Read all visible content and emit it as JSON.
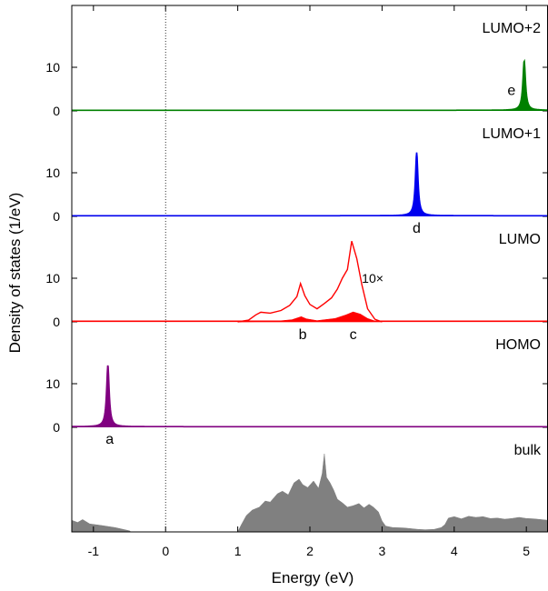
{
  "chart_data": {
    "type": "area",
    "xlabel": "Energy (eV)",
    "ylabel": "Density of states (1/eV)",
    "xlim": [
      -1.3,
      5.3
    ],
    "x_ticks": [
      -1,
      0,
      1,
      2,
      3,
      4,
      5
    ],
    "fermi_line_x": 0,
    "panels": [
      {
        "name": "LUMO+2",
        "color": "#008000",
        "ymax": 19.5,
        "y_ticks": [
          0,
          10
        ],
        "baseline": 0.15,
        "peaks": [
          {
            "x": 4.97,
            "height": 11.4,
            "width": 0.022,
            "label": "e"
          }
        ]
      },
      {
        "name": "LUMO+1",
        "color": "#0000ee",
        "ymax": 19.5,
        "y_ticks": [
          0,
          10
        ],
        "baseline": 0.15,
        "peaks": [
          {
            "x": 3.48,
            "height": 14.5,
            "width": 0.022,
            "label": "d"
          }
        ]
      },
      {
        "name": "LUMO",
        "color": "#ff0000",
        "ymax": 19.5,
        "y_ticks": [
          0,
          10
        ],
        "baseline": 0.15,
        "filled": [
          [
            1.0,
            0.0
          ],
          [
            1.5,
            0.1
          ],
          [
            1.75,
            0.5
          ],
          [
            1.88,
            1.2
          ],
          [
            1.95,
            0.7
          ],
          [
            2.1,
            0.3
          ],
          [
            2.35,
            0.8
          ],
          [
            2.5,
            1.6
          ],
          [
            2.6,
            2.3
          ],
          [
            2.7,
            1.8
          ],
          [
            2.8,
            0.8
          ],
          [
            2.9,
            0.2
          ],
          [
            3.0,
            0.0
          ]
        ],
        "magnified": {
          "factor_label": "10×",
          "points": [
            [
              1.0,
              0.0
            ],
            [
              1.15,
              0.4
            ],
            [
              1.25,
              1.6
            ],
            [
              1.32,
              2.2
            ],
            [
              1.45,
              2.0
            ],
            [
              1.6,
              2.6
            ],
            [
              1.72,
              3.8
            ],
            [
              1.82,
              5.8
            ],
            [
              1.87,
              8.8
            ],
            [
              1.93,
              6.0
            ],
            [
              2.0,
              4.0
            ],
            [
              2.1,
              3.0
            ],
            [
              2.2,
              4.2
            ],
            [
              2.3,
              5.5
            ],
            [
              2.38,
              7.5
            ],
            [
              2.45,
              10.0
            ],
            [
              2.52,
              12.0
            ],
            [
              2.58,
              18.5
            ],
            [
              2.65,
              14.5
            ],
            [
              2.72,
              8.5
            ],
            [
              2.8,
              3.0
            ],
            [
              2.9,
              0.6
            ],
            [
              3.0,
              0.0
            ]
          ]
        },
        "peak_labels": [
          {
            "x": 1.9,
            "label": "b"
          },
          {
            "x": 2.6,
            "label": "c"
          }
        ]
      },
      {
        "name": "HOMO",
        "color": "#800080",
        "ymax": 19.5,
        "y_ticks": [
          0,
          10
        ],
        "baseline": 0.15,
        "peaks": [
          {
            "x": -0.8,
            "height": 14.2,
            "width": 0.022,
            "label": "a"
          }
        ]
      },
      {
        "name": "bulk",
        "color": "#808080",
        "ymax": 20,
        "y_ticks": [],
        "baseline": 0,
        "filled": [
          [
            -1.3,
            3.2
          ],
          [
            -1.22,
            2.6
          ],
          [
            -1.15,
            3.4
          ],
          [
            -1.05,
            2.2
          ],
          [
            -0.9,
            1.8
          ],
          [
            -0.7,
            1.2
          ],
          [
            -0.5,
            0.3
          ],
          [
            -0.48,
            0.0
          ],
          [
            1.0,
            0.0
          ],
          [
            1.05,
            2.0
          ],
          [
            1.12,
            4.5
          ],
          [
            1.2,
            6.0
          ],
          [
            1.3,
            6.8
          ],
          [
            1.38,
            8.5
          ],
          [
            1.45,
            8.2
          ],
          [
            1.55,
            10.5
          ],
          [
            1.62,
            11.2
          ],
          [
            1.7,
            10.2
          ],
          [
            1.78,
            13.5
          ],
          [
            1.85,
            14.5
          ],
          [
            1.9,
            13.0
          ],
          [
            1.97,
            12.2
          ],
          [
            2.05,
            14.0
          ],
          [
            2.12,
            12.0
          ],
          [
            2.17,
            16.0
          ],
          [
            2.2,
            21.5
          ],
          [
            2.23,
            15.0
          ],
          [
            2.28,
            13.5
          ],
          [
            2.33,
            11.5
          ],
          [
            2.38,
            9.0
          ],
          [
            2.45,
            8.0
          ],
          [
            2.52,
            6.8
          ],
          [
            2.6,
            7.2
          ],
          [
            2.68,
            7.8
          ],
          [
            2.75,
            6.6
          ],
          [
            2.82,
            7.6
          ],
          [
            2.88,
            6.8
          ],
          [
            2.95,
            5.5
          ],
          [
            3.0,
            3.0
          ],
          [
            3.05,
            1.6
          ],
          [
            3.15,
            1.2
          ],
          [
            3.3,
            1.1
          ],
          [
            3.5,
            0.7
          ],
          [
            3.6,
            0.6
          ],
          [
            3.72,
            0.7
          ],
          [
            3.82,
            1.2
          ],
          [
            3.87,
            2.0
          ],
          [
            3.92,
            3.8
          ],
          [
            4.0,
            4.2
          ],
          [
            4.1,
            3.6
          ],
          [
            4.2,
            4.3
          ],
          [
            4.3,
            4.0
          ],
          [
            4.4,
            4.2
          ],
          [
            4.5,
            3.7
          ],
          [
            4.6,
            3.8
          ],
          [
            4.7,
            3.5
          ],
          [
            4.8,
            3.7
          ],
          [
            4.9,
            4.0
          ],
          [
            5.0,
            3.7
          ],
          [
            5.1,
            3.6
          ],
          [
            5.2,
            3.4
          ],
          [
            5.3,
            3.2
          ]
        ]
      }
    ]
  }
}
